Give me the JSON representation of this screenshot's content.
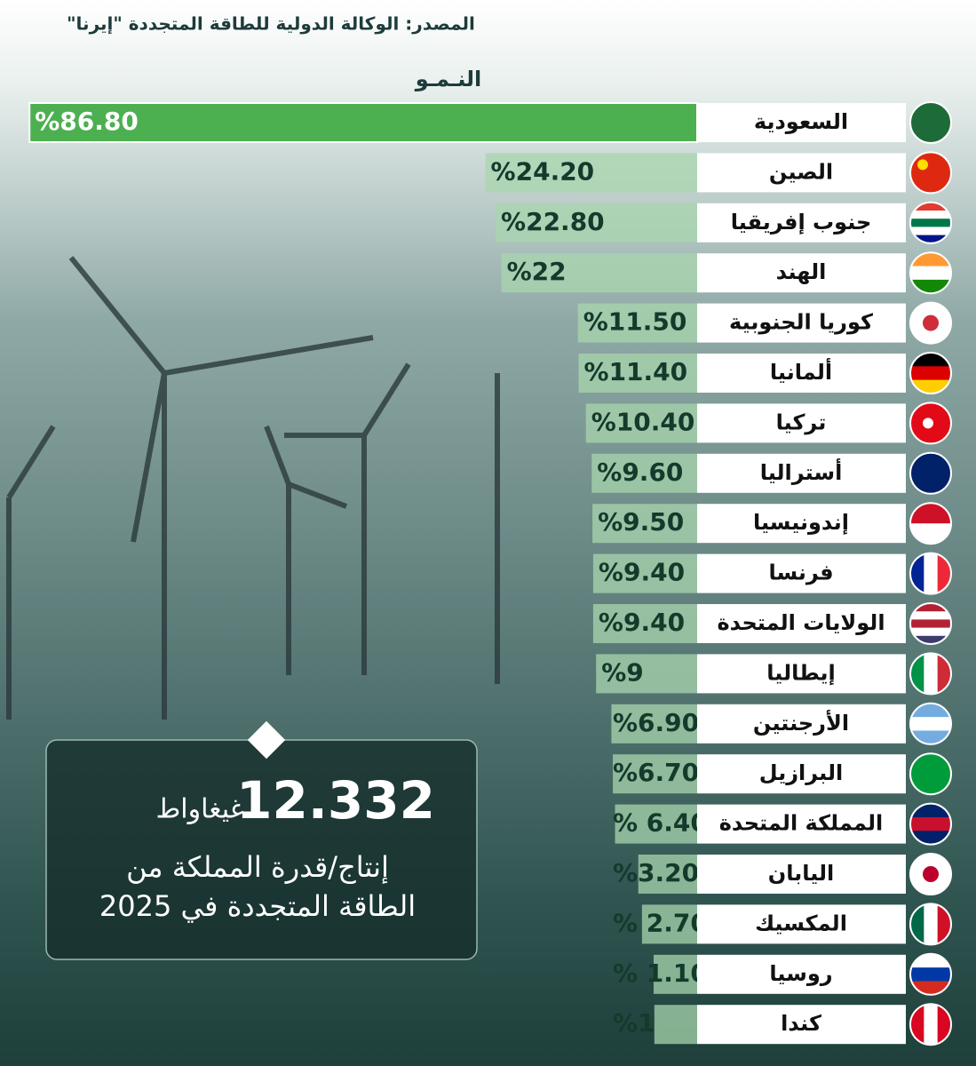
{
  "source": "المصدر: الوكالة الدولية للطاقة المتجددة \"إيرنا\"",
  "chart_data": {
    "type": "hbar",
    "title": "النـمـو",
    "categories": [
      "السعودية",
      "الصين",
      "جنوب إفريقيا",
      "الهند",
      "كوريا الجنوبية",
      "ألمانيا",
      "تركيا",
      "أستراليا",
      "إندونيسيا",
      "فرنسا",
      "الولايات المتحدة",
      "إيطاليا",
      "الأرجنتين",
      "البرازيل",
      "المملكة المتحدة",
      "اليابان",
      "المكسيك",
      "روسيا",
      "كندا"
    ],
    "values": [
      86.8,
      24.2,
      22.8,
      22,
      11.5,
      11.4,
      10.4,
      9.6,
      9.5,
      9.4,
      9.4,
      9,
      6.9,
      6.7,
      6.4,
      3.2,
      2.7,
      1.1,
      1
    ],
    "value_labels": [
      "%86.80",
      "%24.20",
      "%22.80",
      "%22",
      "%11.50",
      "%11.40",
      "%10.40",
      "%9.60",
      "%9.50",
      "%9.40",
      "%9.40",
      "%9",
      "%6.90",
      "%6.70",
      "% 6.40",
      "%3.20",
      "% 2.70",
      "% 1.10",
      "%1"
    ],
    "highlight_color": "#4cb051",
    "color": "#a8d5ae"
  },
  "callout": {
    "value": "12.332",
    "unit": "غيغاواط",
    "lines": [
      "إنتاج/قدرة المملكة من",
      "الطاقة المتجددة في 2025"
    ]
  }
}
